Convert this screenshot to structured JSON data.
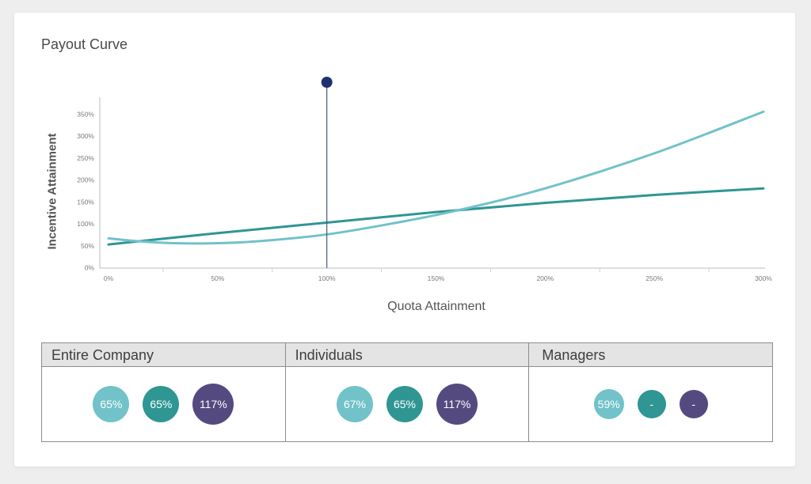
{
  "title": "Payout Curve",
  "chart_data": {
    "type": "line",
    "xlabel": "Quota Attainment",
    "ylabel": "Incentive Attainment",
    "xlim": [
      0,
      300
    ],
    "ylim": [
      0,
      350
    ],
    "x_ticks": [
      "0%",
      "50%",
      "100%",
      "150%",
      "200%",
      "250%",
      "300%"
    ],
    "y_ticks": [
      "0%",
      "50%",
      "100%",
      "150%",
      "200%",
      "250%",
      "300%",
      "350%"
    ],
    "marker_line_x": 100,
    "grid": false,
    "series": [
      {
        "color": "#2f9693",
        "x": [
          0,
          50,
          100,
          150,
          200,
          250,
          300
        ],
        "y": [
          52,
          78,
          102,
          126,
          147,
          165,
          180
        ]
      },
      {
        "color": "#71c2c9",
        "x": [
          0,
          15,
          30,
          50,
          70,
          100,
          130,
          160,
          200,
          250,
          300
        ],
        "y": [
          66,
          59,
          55,
          55,
          60,
          75,
          100,
          130,
          180,
          260,
          355
        ]
      }
    ]
  },
  "table": {
    "columns": [
      {
        "header": "Entire Company",
        "values": [
          "65%",
          "65%",
          "117%"
        ]
      },
      {
        "header": "Individuals",
        "values": [
          "67%",
          "65%",
          "117%"
        ]
      },
      {
        "header": "Managers",
        "values": [
          "59%",
          "-",
          "-"
        ]
      }
    ]
  }
}
